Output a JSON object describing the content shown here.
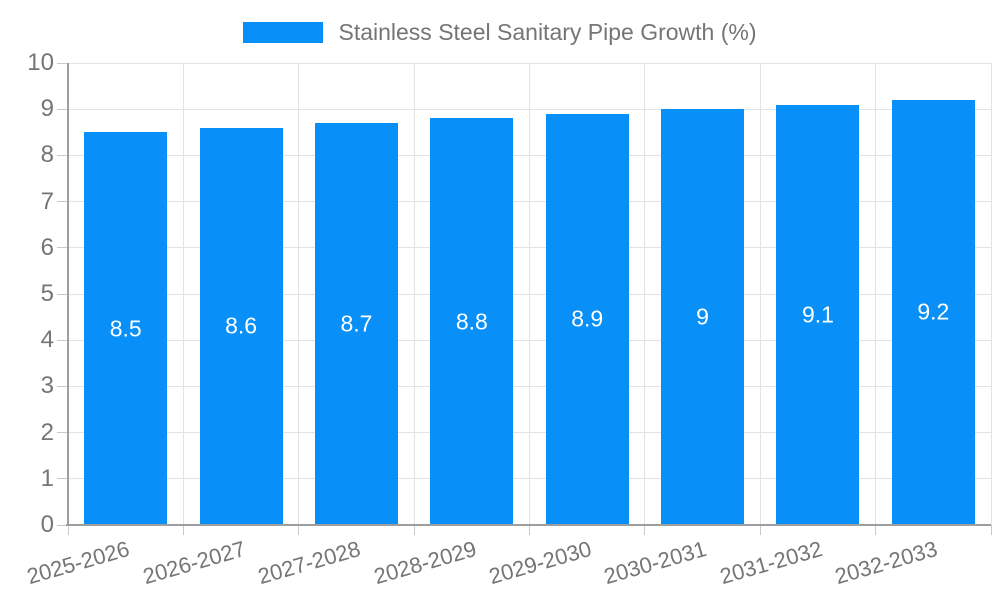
{
  "legend": {
    "label": "Stainless Steel Sanitary Pipe Growth (%)"
  },
  "chart_data": {
    "type": "bar",
    "title": "Stainless Steel Sanitary Pipe Growth (%)",
    "categories": [
      "2025-2026",
      "2026-2027",
      "2027-2028",
      "2028-2029",
      "2029-2030",
      "2030-2031",
      "2031-2032",
      "2032-2033"
    ],
    "values": [
      8.5,
      8.6,
      8.7,
      8.8,
      8.9,
      9,
      9.1,
      9.2
    ],
    "bar_labels": [
      "8.5",
      "8.6",
      "8.7",
      "8.8",
      "8.9",
      "9",
      "9.1",
      "9.2"
    ],
    "xlabel": "",
    "ylabel": "",
    "ylim": [
      0,
      10
    ],
    "y_ticks": [
      0,
      1,
      2,
      3,
      4,
      5,
      6,
      7,
      8,
      9,
      10
    ],
    "grid": true,
    "legend_position": "top-center",
    "bar_band_fraction": 0.72,
    "x_label_rotation_deg": -16,
    "colors": {
      "bar": "#0990f8",
      "grid": "#e3e3e3",
      "axis": "#9e9e9e",
      "tick": "#c9c9c9",
      "text": "#757575",
      "bar_label_text": "#ffffff",
      "background": "#ffffff"
    }
  }
}
